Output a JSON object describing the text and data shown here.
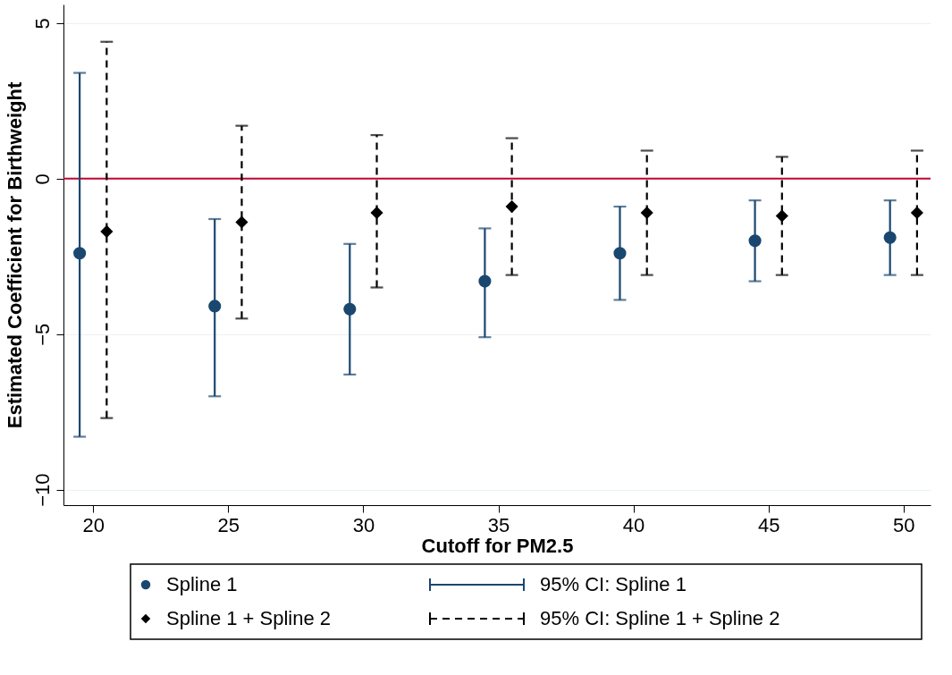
{
  "chart_data": {
    "type": "scatter",
    "xlabel": "Cutoff for PM2.5",
    "ylabel": "Estimated Coefficient for Birthweight",
    "xlim": [
      18.9,
      51
    ],
    "xticks": [
      20,
      25,
      30,
      35,
      40,
      45,
      50
    ],
    "ylim": [
      -10.5,
      5.6
    ],
    "yticks": [
      -10,
      -5,
      0,
      5
    ],
    "grid": "y",
    "legend": "bottom",
    "series": [
      {
        "name": "Spline 1",
        "color": "#1a476f",
        "marker": "circle",
        "line_style": "solid",
        "x": [
          19.5,
          24.5,
          29.5,
          34.5,
          39.5,
          44.5,
          49.5
        ],
        "values": [
          -2.4,
          -4.1,
          -4.2,
          -3.3,
          -2.4,
          -2.0,
          -1.9
        ],
        "errors": [
          [
            -8.3,
            3.4
          ],
          [
            -7.0,
            -1.3
          ],
          [
            -6.3,
            -2.1
          ],
          [
            -5.1,
            -1.6
          ],
          [
            -3.9,
            -0.9
          ],
          [
            -3.3,
            -0.7
          ],
          [
            -3.1,
            -0.7
          ]
        ]
      },
      {
        "name": "Spline 1 + Spline 2",
        "color": "#000000",
        "marker": "diamond",
        "line_style": "dashed",
        "x": [
          20.5,
          25.5,
          30.5,
          35.5,
          40.5,
          45.5,
          50.5
        ],
        "values": [
          -1.7,
          -1.4,
          -1.1,
          -0.9,
          -1.1,
          -1.2,
          -1.1
        ],
        "errors": [
          [
            -7.7,
            4.4
          ],
          [
            -4.5,
            1.7
          ],
          [
            -3.5,
            1.4
          ],
          [
            -3.1,
            1.3
          ],
          [
            -3.1,
            0.9
          ],
          [
            -3.1,
            0.7
          ],
          [
            -3.1,
            0.9
          ]
        ]
      }
    ],
    "ref_lines": [
      {
        "axis": "y",
        "value": 0,
        "color": "#c10534"
      }
    ],
    "annotations": [
      "95% CI: Spline 1",
      "95% CI: Spline 1 + Spline 2"
    ]
  }
}
